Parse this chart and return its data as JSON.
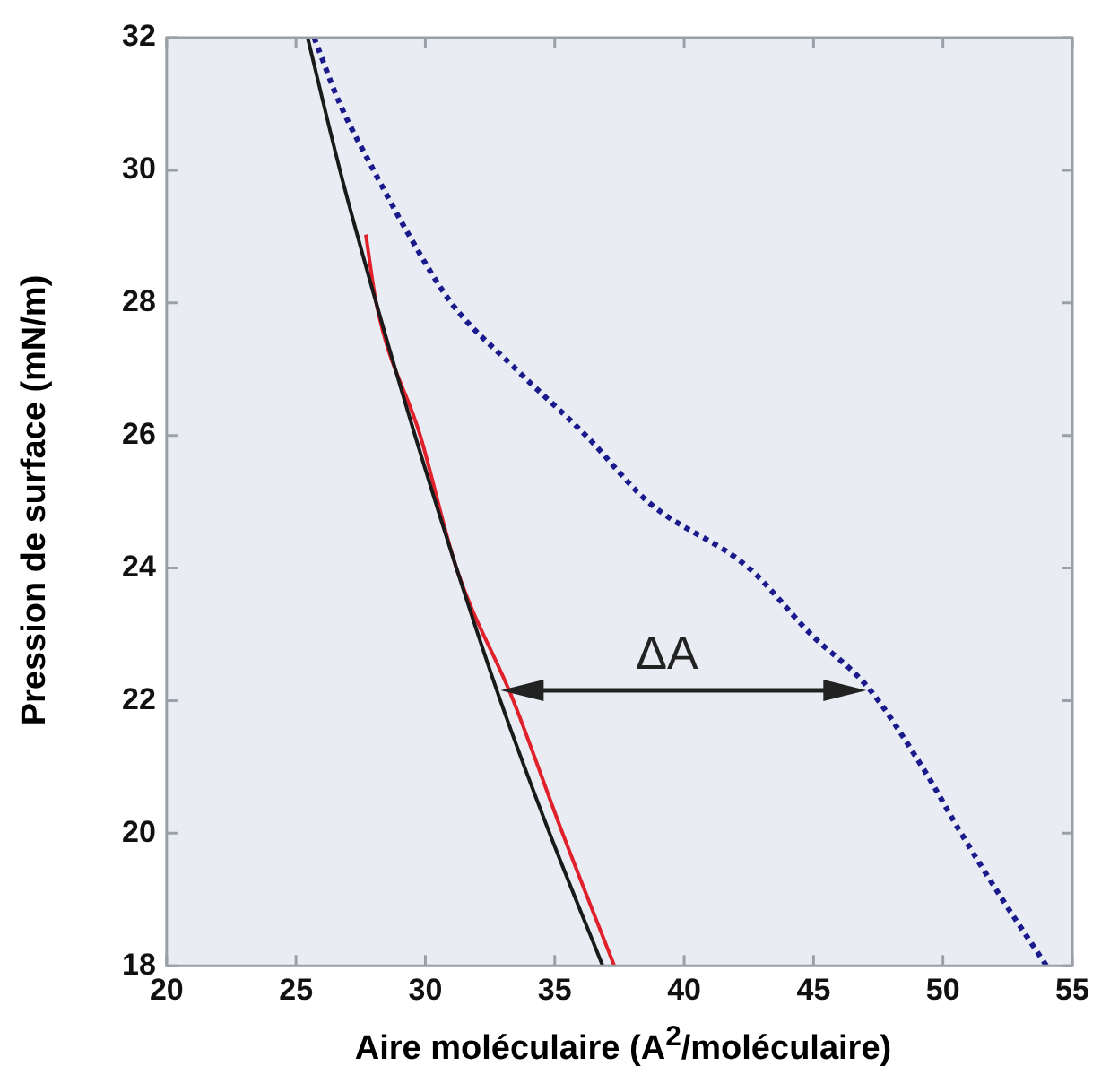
{
  "chart_data": {
    "type": "line",
    "xlabel": "Aire moléculaire (A$^{2}$/moléculaire)",
    "ylabel": "Pression de surface (mN/m)",
    "xlim": [
      20,
      55
    ],
    "xticks": [
      20,
      25,
      30,
      35,
      40,
      45,
      50,
      55
    ],
    "ylim": [
      18,
      32
    ],
    "yticks": [
      18,
      20,
      22,
      24,
      26,
      28,
      30,
      32
    ],
    "grid": false,
    "legend": false,
    "marker": "none",
    "series": [
      {
        "color": "#1a1a1a",
        "line_style": "solid",
        "x": [
          25.45,
          26.7,
          28.1,
          29.6,
          31.2,
          32.9,
          34.8,
          36.85
        ],
        "values": [
          32,
          30,
          28,
          26,
          24,
          22,
          20,
          18
        ]
      },
      {
        "color": "#e0202a",
        "line_style": "solid",
        "x": [
          27.7,
          28.1,
          29.8,
          31.2,
          33.4,
          35.3,
          37.3
        ],
        "values": [
          29.03,
          28,
          26,
          24,
          22,
          20,
          18
        ]
      },
      {
        "color": "#1a1a8c",
        "line_style": "dotted",
        "x": [
          25.7,
          26.7,
          28.0,
          29.4,
          31.0,
          33.5,
          36.2,
          38.6,
          42.5,
          44.9,
          47.1,
          49.2,
          50.7,
          52.3,
          54.0
        ],
        "values": [
          32,
          31,
          30,
          29,
          28,
          27,
          26,
          25,
          24,
          23,
          22.2,
          21,
          20,
          19,
          18
        ]
      }
    ],
    "annotations": [
      "ΔA"
    ]
  }
}
